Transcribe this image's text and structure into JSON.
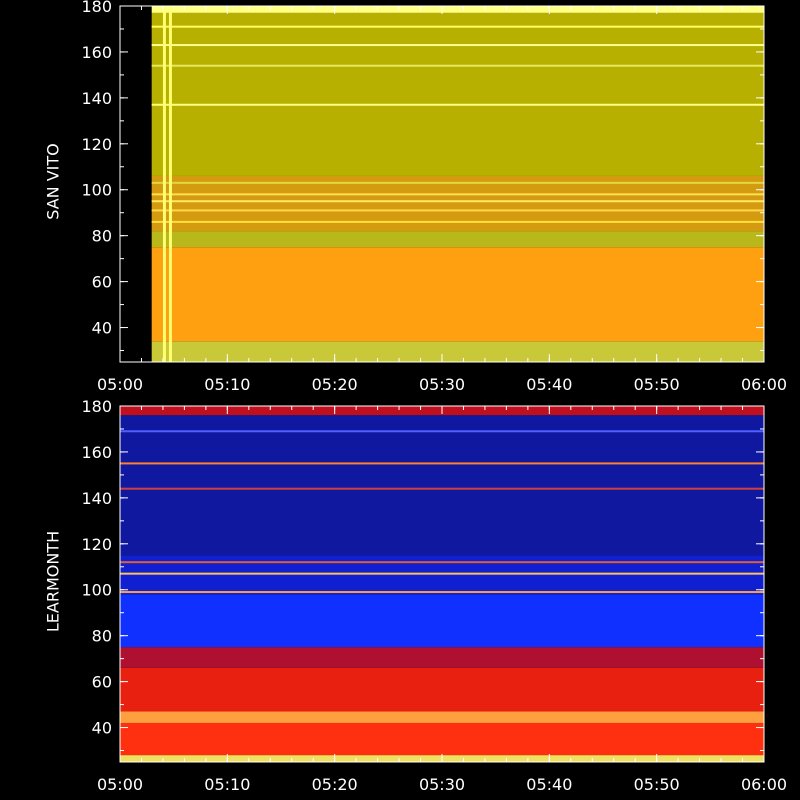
{
  "chart_data": [
    {
      "type": "heatmap",
      "ylabel": "SAN VITO",
      "xlabel": "",
      "x_ticks": [
        "05:00",
        "05:10",
        "05:20",
        "05:30",
        "05:40",
        "05:50",
        "06:00"
      ],
      "y_ticks": [
        40,
        60,
        80,
        100,
        120,
        140,
        160,
        180
      ],
      "ylim": [
        25,
        180
      ],
      "xlim": [
        "05:00",
        "06:00"
      ],
      "colormap": "yellow-orange",
      "data_start": "05:03",
      "bands_desc": [
        {
          "from": 25,
          "to": 34,
          "color": "#c8c838"
        },
        {
          "from": 34,
          "to": 75,
          "color": "#ffa010"
        },
        {
          "from": 75,
          "to": 82,
          "color": "#b8b81a"
        },
        {
          "from": 82,
          "to": 106,
          "color": "#d49a10"
        },
        {
          "from": 106,
          "to": 177,
          "color": "#b8b000"
        },
        {
          "from": 177,
          "to": 180,
          "color": "#ffff80"
        }
      ],
      "lines": [
        {
          "freq": 86,
          "color": "#ffe040"
        },
        {
          "freq": 91,
          "color": "#ffd848"
        },
        {
          "freq": 95,
          "color": "#ffe860"
        },
        {
          "freq": 98,
          "color": "#ffe050"
        },
        {
          "freq": 103,
          "color": "#e0d840"
        },
        {
          "freq": 137,
          "color": "#ffff80"
        },
        {
          "freq": 154,
          "color": "#e8e860"
        },
        {
          "freq": 163,
          "color": "#ffff90"
        },
        {
          "freq": 171,
          "color": "#ffff60"
        }
      ]
    },
    {
      "type": "heatmap",
      "ylabel": "LEARMONTH",
      "xlabel": "",
      "x_ticks": [
        "05:00",
        "05:10",
        "05:20",
        "05:30",
        "05:40",
        "05:50",
        "06:00"
      ],
      "y_ticks": [
        40,
        60,
        80,
        100,
        120,
        140,
        160,
        180
      ],
      "ylim": [
        25,
        180
      ],
      "xlim": [
        "05:00",
        "06:00"
      ],
      "colormap": "blue-red",
      "bands_desc": [
        {
          "from": 25,
          "to": 28,
          "color": "#f0e060"
        },
        {
          "from": 28,
          "to": 42,
          "color": "#ff3010"
        },
        {
          "from": 42,
          "to": 47,
          "color": "#ffa040"
        },
        {
          "from": 47,
          "to": 66,
          "color": "#e82010"
        },
        {
          "from": 66,
          "to": 75,
          "color": "#b01030"
        },
        {
          "from": 75,
          "to": 98,
          "color": "#1030ff"
        },
        {
          "from": 98,
          "to": 115,
          "color": "#1020d0"
        },
        {
          "from": 115,
          "to": 176,
          "color": "#1018a0"
        },
        {
          "from": 176,
          "to": 180,
          "color": "#c01020"
        }
      ],
      "lines": [
        {
          "freq": 99,
          "color": "#ffa040"
        },
        {
          "freq": 107,
          "color": "#ffc060"
        },
        {
          "freq": 112,
          "color": "#e06030"
        },
        {
          "freq": 144,
          "color": "#d04040"
        },
        {
          "freq": 155,
          "color": "#ff8030"
        },
        {
          "freq": 169,
          "color": "#5060ff"
        }
      ]
    }
  ]
}
